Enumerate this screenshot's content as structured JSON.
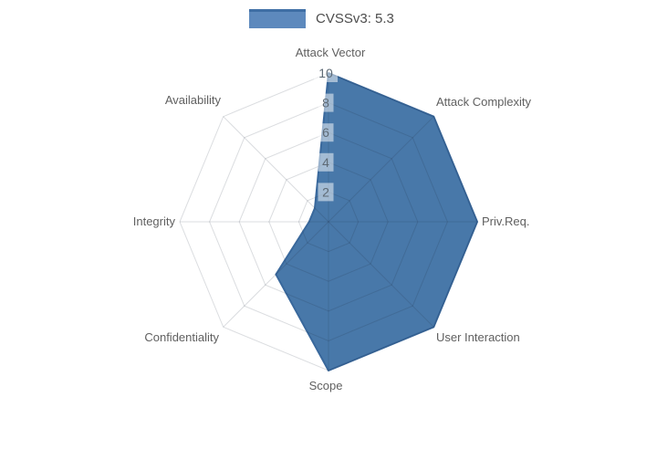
{
  "legend": {
    "label": "CVSSv3: 5.3",
    "swatch_fill": "#5d89bd",
    "swatch_border": "#3f6fa5"
  },
  "chart_data": {
    "type": "radar",
    "title": "",
    "categories": [
      "Attack Vector",
      "Attack Complexity",
      "Priv.Req.",
      "User Interaction",
      "Scope",
      "Confidentiality",
      "Integrity",
      "Availability"
    ],
    "series": [
      {
        "name": "CVSSv3: 5.3",
        "values": [
          10,
          10,
          10,
          10,
          10,
          5,
          1.3,
          1.3
        ]
      }
    ],
    "radial_ticks": [
      "2",
      "4",
      "6",
      "8",
      "10"
    ],
    "radial_tick_values": [
      2,
      4,
      6,
      8,
      10
    ],
    "radial_range": [
      0,
      10
    ],
    "start_axis": "top",
    "direction": "clockwise",
    "grid": "on",
    "legend_position": "top-center",
    "colors": {
      "fill": "#4878a9",
      "line": "#39689c",
      "grid": "rgba(30,45,60,0.16)",
      "tick_text": "#5e6a75",
      "tick_bg": "rgba(255,255,255,0.5)",
      "label_text": "#606060"
    }
  }
}
